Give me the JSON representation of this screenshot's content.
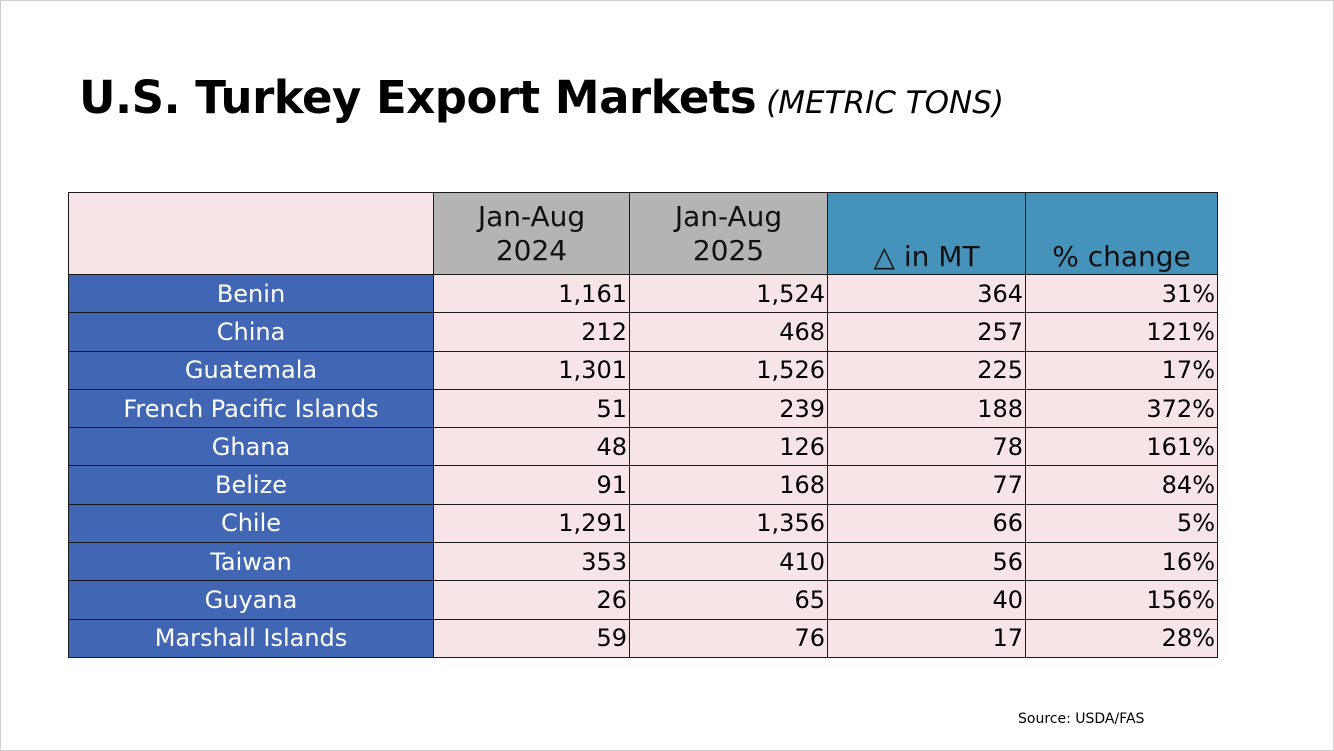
{
  "title": "U.S. Turkey Export Markets",
  "subtitle": "(METRIC TONS)",
  "source": "Source: USDA/FAS",
  "colors": {
    "country_cell": "#4166b4",
    "value_cell": "#f6e4e6",
    "year_header": "#b4b4b4",
    "change_header": "#4592bb"
  },
  "chart_data": {
    "type": "table",
    "title": "U.S. Turkey Export Markets (METRIC TONS)",
    "columns": [
      {
        "line1": "Jan-Aug",
        "line2": "2024"
      },
      {
        "line1": "Jan-Aug",
        "line2": "2025"
      },
      {
        "label": "△ in MT"
      },
      {
        "label": "% change"
      }
    ],
    "rows": [
      {
        "country": "Benin",
        "y2024": "1,161",
        "y2025": "1,524",
        "delta": "364",
        "pct": "31%"
      },
      {
        "country": "China",
        "y2024": "212",
        "y2025": "468",
        "delta": "257",
        "pct": "121%"
      },
      {
        "country": "Guatemala",
        "y2024": "1,301",
        "y2025": "1,526",
        "delta": "225",
        "pct": "17%"
      },
      {
        "country": "French Pacific Islands",
        "y2024": "51",
        "y2025": "239",
        "delta": "188",
        "pct": "372%"
      },
      {
        "country": "Ghana",
        "y2024": "48",
        "y2025": "126",
        "delta": "78",
        "pct": "161%"
      },
      {
        "country": "Belize",
        "y2024": "91",
        "y2025": "168",
        "delta": "77",
        "pct": "84%"
      },
      {
        "country": "Chile",
        "y2024": "1,291",
        "y2025": "1,356",
        "delta": "66",
        "pct": "5%"
      },
      {
        "country": "Taiwan",
        "y2024": "353",
        "y2025": "410",
        "delta": "56",
        "pct": "16%"
      },
      {
        "country": "Guyana",
        "y2024": "26",
        "y2025": "65",
        "delta": "40",
        "pct": "156%"
      },
      {
        "country": "Marshall Islands",
        "y2024": "59",
        "y2025": "76",
        "delta": "17",
        "pct": "28%"
      }
    ]
  }
}
